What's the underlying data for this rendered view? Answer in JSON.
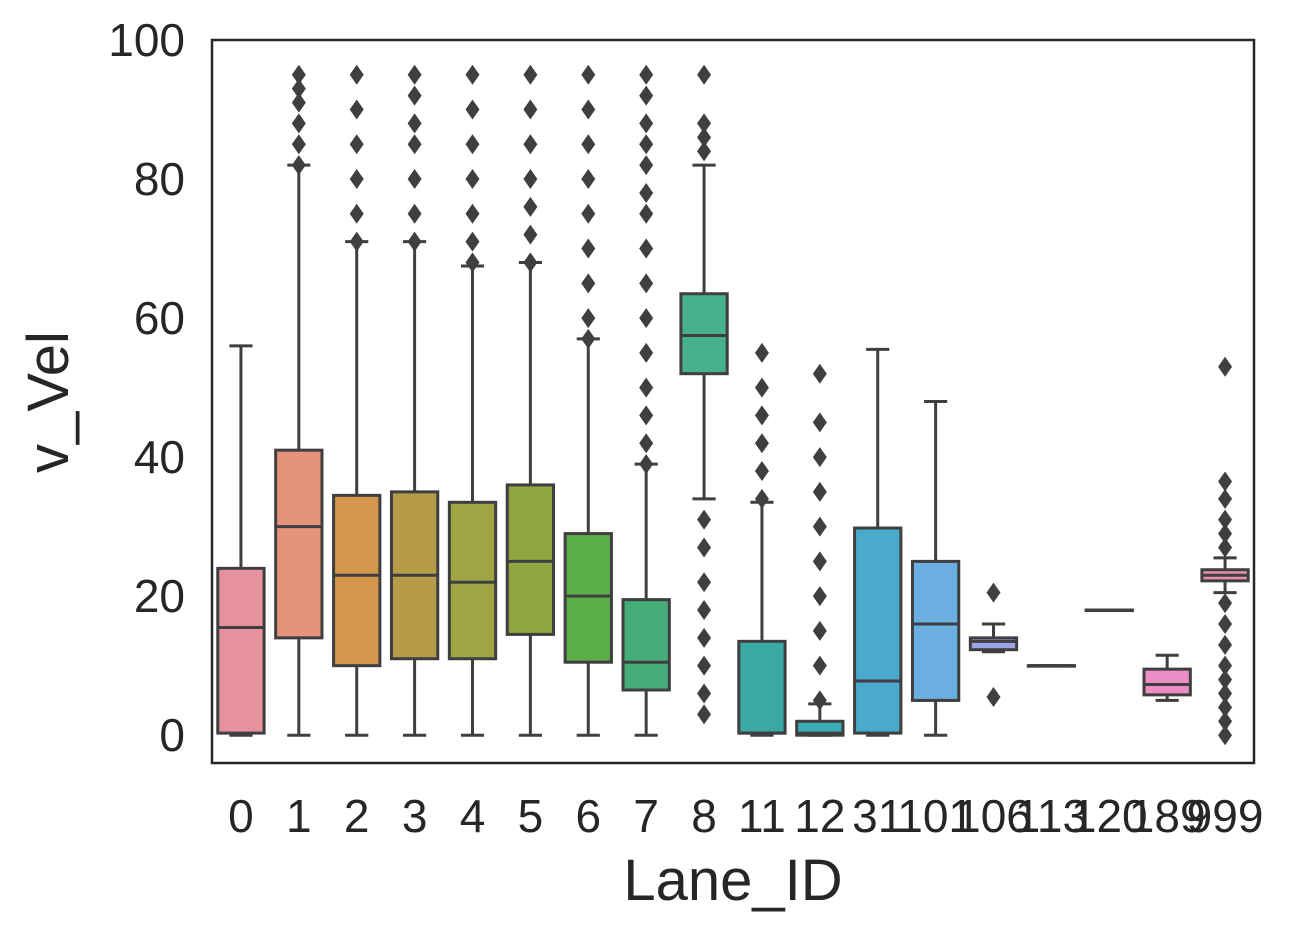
{
  "chart_data": {
    "type": "box",
    "xlabel": "Lane_ID",
    "ylabel": "v_Vel",
    "ylim": [
      -4,
      100
    ],
    "yticks": [
      0,
      20,
      40,
      60,
      80,
      100
    ],
    "grid": false,
    "legend": "none",
    "categories": [
      "0",
      "1",
      "2",
      "3",
      "4",
      "5",
      "6",
      "7",
      "8",
      "11",
      "12",
      "31",
      "101",
      "106",
      "113",
      "120",
      "189",
      "999"
    ],
    "colors": [
      "#e8919e",
      "#e5937a",
      "#d3964a",
      "#b69c49",
      "#a1a443",
      "#8fa641",
      "#5bae48",
      "#45ad7a",
      "#47b08f",
      "#3aa8a3",
      "#3eabb8",
      "#49aacc",
      "#6aaee2",
      "#9aa6e8",
      "#c49ee8",
      "#e88ee2",
      "#ea8ec5",
      "#e98fa8"
    ],
    "boxes": [
      {
        "min": 0,
        "q1": 0.3,
        "median": 15.5,
        "q3": 24,
        "max": 56,
        "outliers": []
      },
      {
        "min": 0,
        "q1": 14,
        "median": 30,
        "q3": 41,
        "max": 82,
        "outliers": [
          82,
          85,
          88,
          91,
          93,
          95
        ]
      },
      {
        "min": 0,
        "q1": 10,
        "median": 23,
        "q3": 34.5,
        "max": 71,
        "outliers": [
          71,
          75,
          80,
          85,
          90,
          95
        ]
      },
      {
        "min": 0,
        "q1": 11,
        "median": 23,
        "q3": 35,
        "max": 71,
        "outliers": [
          71,
          75,
          80,
          85,
          88,
          92,
          95
        ]
      },
      {
        "min": 0,
        "q1": 11,
        "median": 22,
        "q3": 33.5,
        "max": 67.5,
        "outliers": [
          68,
          71,
          75,
          80,
          85,
          90,
          95
        ]
      },
      {
        "min": 0,
        "q1": 14.5,
        "median": 25,
        "q3": 36,
        "max": 68,
        "outliers": [
          68,
          72,
          76,
          80,
          85,
          90,
          95
        ]
      },
      {
        "min": 0,
        "q1": 10.5,
        "median": 20,
        "q3": 29,
        "max": 57,
        "outliers": [
          57,
          60,
          65,
          70,
          75,
          80,
          85,
          90,
          95
        ]
      },
      {
        "min": 0,
        "q1": 6.5,
        "median": 10.5,
        "q3": 19.5,
        "max": 39,
        "outliers": [
          39,
          42,
          46,
          50,
          55,
          60,
          65,
          70,
          75,
          78,
          82,
          85,
          88,
          92,
          95
        ]
      },
      {
        "min": 34,
        "q1": 52,
        "median": 57.5,
        "q3": 63.5,
        "max": 82,
        "outliers": [
          3,
          6,
          10,
          14,
          18,
          22,
          27,
          31,
          84,
          86,
          88,
          95
        ]
      },
      {
        "min": 0,
        "q1": 0.3,
        "median": 0.3,
        "q3": 13.5,
        "max": 33.5,
        "outliers": [
          34,
          38,
          42,
          46,
          50,
          55
        ]
      },
      {
        "min": 0,
        "q1": 0,
        "median": 0.3,
        "q3": 2,
        "max": 4.5,
        "outliers": [
          5,
          10,
          15,
          20,
          25,
          30,
          35,
          40,
          45,
          52
        ]
      },
      {
        "min": 0,
        "q1": 0.3,
        "median": 7.8,
        "q3": 29.8,
        "max": 55.5,
        "outliers": []
      },
      {
        "min": 0,
        "q1": 5,
        "median": 16,
        "q3": 25,
        "max": 48,
        "outliers": []
      },
      {
        "min": 12,
        "q1": 12.3,
        "median": 13.5,
        "q3": 14,
        "max": 16,
        "outliers": [
          20.5,
          5.5
        ]
      },
      {
        "min": 10,
        "q1": 10,
        "median": 10,
        "q3": 10,
        "max": 10,
        "outliers": []
      },
      {
        "min": 18,
        "q1": 18,
        "median": 18,
        "q3": 18,
        "max": 18,
        "outliers": []
      },
      {
        "min": 5,
        "q1": 5.8,
        "median": 7.3,
        "q3": 9.5,
        "max": 11.5,
        "outliers": []
      },
      {
        "min": 20.5,
        "q1": 22.2,
        "median": 23,
        "q3": 23.8,
        "max": 25.5,
        "outliers": [
          53,
          36.5,
          34,
          31,
          29,
          27,
          19,
          16,
          13,
          10,
          8,
          6,
          4,
          2,
          0
        ]
      }
    ]
  }
}
